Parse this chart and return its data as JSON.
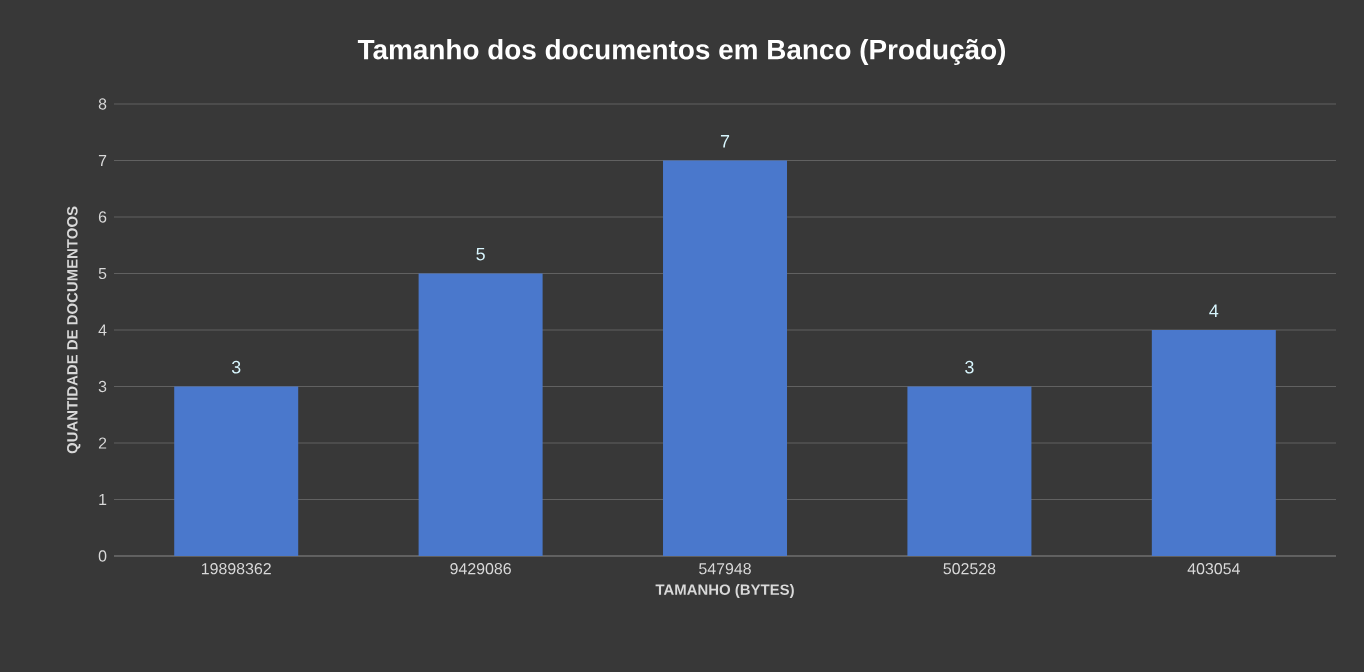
{
  "chart_data": {
    "type": "bar",
    "title": "Tamanho  dos documentos  em  Banco  (Produção)",
    "xlabel": "TAMANHO (BYTES)",
    "ylabel": "QUANTIDADE DE DOCUMENTOOS",
    "categories": [
      "19898362",
      "9429086",
      "547948",
      "502528",
      "403054"
    ],
    "values": [
      3,
      5,
      7,
      3,
      4
    ],
    "color": "#4a78cc",
    "ylim": [
      0,
      8
    ],
    "yticks": [
      0,
      1,
      2,
      3,
      4,
      5,
      6,
      7,
      8
    ],
    "grid": "y",
    "data_labels": true
  }
}
